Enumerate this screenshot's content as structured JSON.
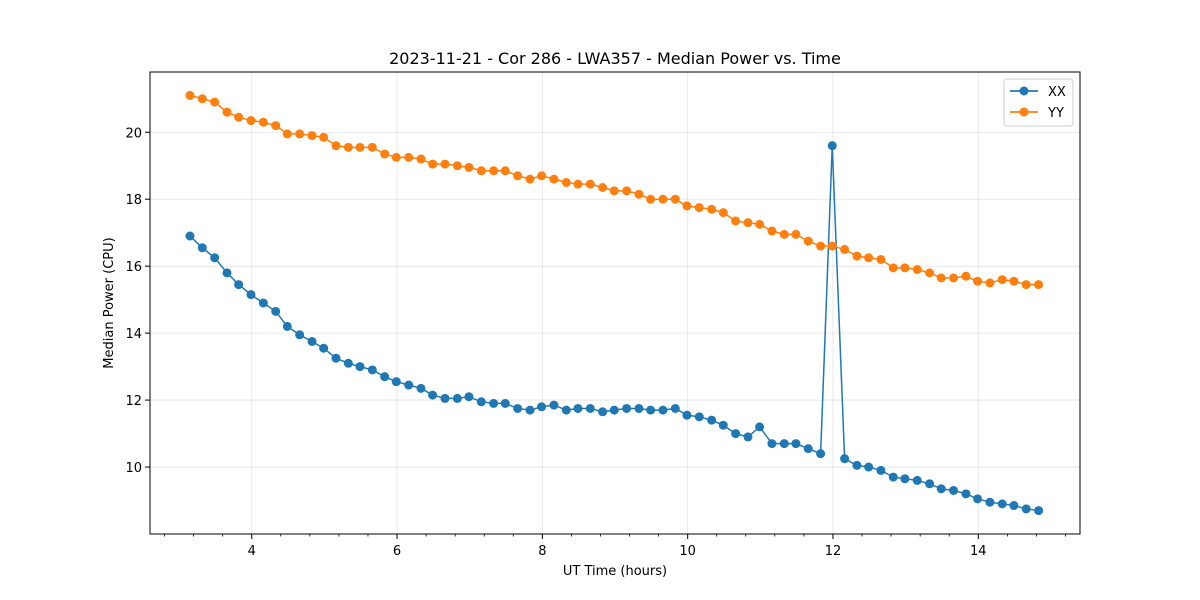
{
  "chart_data": {
    "type": "line",
    "title": "2023-11-21 - Cor 286 - LWA357 - Median Power vs. Time",
    "xlabel": "UT Time (hours)",
    "ylabel": "Median Power (CPU)",
    "xlim": [
      2.6,
      15.4
    ],
    "ylim": [
      8.0,
      21.8
    ],
    "xticks": [
      4,
      6,
      8,
      10,
      12,
      14
    ],
    "yticks": [
      10,
      12,
      14,
      16,
      18,
      20
    ],
    "grid": true,
    "legend_position": "top-right",
    "x": [
      3.15,
      3.32,
      3.49,
      3.66,
      3.82,
      3.99,
      4.16,
      4.33,
      4.49,
      4.66,
      4.83,
      4.99,
      5.16,
      5.33,
      5.49,
      5.66,
      5.83,
      5.99,
      6.16,
      6.33,
      6.49,
      6.66,
      6.83,
      6.99,
      7.16,
      7.33,
      7.49,
      7.66,
      7.83,
      7.99,
      8.16,
      8.33,
      8.49,
      8.66,
      8.83,
      8.99,
      9.16,
      9.33,
      9.49,
      9.66,
      9.83,
      9.99,
      10.16,
      10.33,
      10.49,
      10.66,
      10.83,
      10.99,
      11.16,
      11.33,
      11.49,
      11.66,
      11.83,
      11.99,
      12.16,
      12.33,
      12.49,
      12.66,
      12.83,
      12.99,
      13.16,
      13.33,
      13.49,
      13.66,
      13.83,
      13.99,
      14.16,
      14.33,
      14.49,
      14.66,
      14.83
    ],
    "series": [
      {
        "name": "XX",
        "color": "#1f77b4",
        "values": [
          16.9,
          16.55,
          16.25,
          15.8,
          15.45,
          15.15,
          14.9,
          14.65,
          14.2,
          13.95,
          13.75,
          13.55,
          13.25,
          13.1,
          13.0,
          12.9,
          12.7,
          12.55,
          12.45,
          12.35,
          12.15,
          12.05,
          12.05,
          12.1,
          11.95,
          11.9,
          11.9,
          11.75,
          11.7,
          11.8,
          11.85,
          11.7,
          11.75,
          11.75,
          11.65,
          11.7,
          11.75,
          11.75,
          11.7,
          11.7,
          11.75,
          11.55,
          11.5,
          11.4,
          11.25,
          11.0,
          10.9,
          11.2,
          10.7,
          10.7,
          10.7,
          10.55,
          10.4,
          19.6,
          10.25,
          10.05,
          10.0,
          9.9,
          9.7,
          9.65,
          9.6,
          9.5,
          9.35,
          9.3,
          9.2,
          9.05,
          8.95,
          8.9,
          8.85,
          8.75,
          8.7
        ]
      },
      {
        "name": "YY",
        "color": "#ff7f0e",
        "values": [
          21.1,
          21.0,
          20.9,
          20.6,
          20.45,
          20.35,
          20.3,
          20.2,
          19.95,
          19.95,
          19.9,
          19.85,
          19.6,
          19.55,
          19.55,
          19.55,
          19.35,
          19.25,
          19.25,
          19.2,
          19.05,
          19.05,
          19.0,
          18.95,
          18.85,
          18.85,
          18.85,
          18.7,
          18.6,
          18.7,
          18.6,
          18.5,
          18.45,
          18.45,
          18.35,
          18.25,
          18.25,
          18.15,
          18.0,
          18.0,
          18.0,
          17.8,
          17.75,
          17.7,
          17.6,
          17.35,
          17.3,
          17.25,
          17.05,
          16.95,
          16.95,
          16.75,
          16.6,
          16.6,
          16.5,
          16.3,
          16.25,
          16.2,
          15.95,
          15.95,
          15.9,
          15.8,
          15.65,
          15.65,
          15.7,
          15.55,
          15.5,
          15.6,
          15.55,
          15.45,
          15.45
        ]
      }
    ]
  }
}
